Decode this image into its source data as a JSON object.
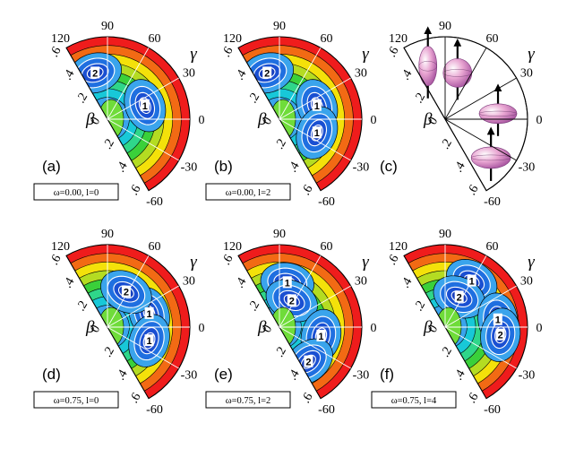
{
  "chart_data": {
    "type": "contour",
    "gamma_ticks": [
      "120",
      "90",
      "60",
      "30",
      "0",
      "-30",
      "-60"
    ],
    "beta_ticks": [
      ".6",
      ".4",
      ".2",
      "0",
      ".2",
      ".4",
      ".6"
    ],
    "gamma_label": "γ",
    "beta_label": "β",
    "colors": {
      "low": "#1f6fe0",
      "mid": "#18c8d8",
      "midhigh": "#3ad03a",
      "high": "#f4e10a",
      "top": "#ef1c1c"
    },
    "panels": [
      {
        "label": "(a)",
        "condition": "ω=0.00, l=0",
        "minima": [
          {
            "label": "2",
            "gamma": 105,
            "beta": 0.36
          },
          {
            "label": "1",
            "gamma": 20,
            "beta": 0.3
          }
        ]
      },
      {
        "label": "(b)",
        "condition": "ω=0.00, l=2",
        "minima": [
          {
            "label": "2",
            "gamma": 105,
            "beta": 0.36
          },
          {
            "label": "1",
            "gamma": 20,
            "beta": 0.3
          },
          {
            "label": "1",
            "gamma": -20,
            "beta": 0.3
          }
        ]
      },
      {
        "label": "(c)",
        "condition": "",
        "shapes": [
          "prolate",
          "oblate",
          "prolate",
          "oblate"
        ]
      },
      {
        "label": "(d)",
        "condition": "ω=0.75, l=0",
        "minima": [
          {
            "label": "1",
            "gamma": 18,
            "beta": 0.33
          },
          {
            "label": "2",
            "gamma": 62,
            "beta": 0.3
          },
          {
            "label": "1",
            "gamma": -18,
            "beta": 0.33
          }
        ]
      },
      {
        "label": "(e)",
        "condition": "ω=0.75, l=2",
        "minima": [
          {
            "label": "1",
            "gamma": 80,
            "beta": 0.34
          },
          {
            "label": "2",
            "gamma": 65,
            "beta": 0.22
          },
          {
            "label": "1",
            "gamma": -12,
            "beta": 0.32
          },
          {
            "label": "2",
            "gamma": -50,
            "beta": 0.34
          }
        ]
      },
      {
        "label": "(f)",
        "condition": "ω=0.75, l=4",
        "minima": [
          {
            "label": "1",
            "gamma": 60,
            "beta": 0.4
          },
          {
            "label": "2",
            "gamma": 65,
            "beta": 0.25
          },
          {
            "label": "1",
            "gamma": 8,
            "beta": 0.4
          },
          {
            "label": "2",
            "gamma": -8,
            "beta": 0.42
          }
        ]
      }
    ]
  }
}
